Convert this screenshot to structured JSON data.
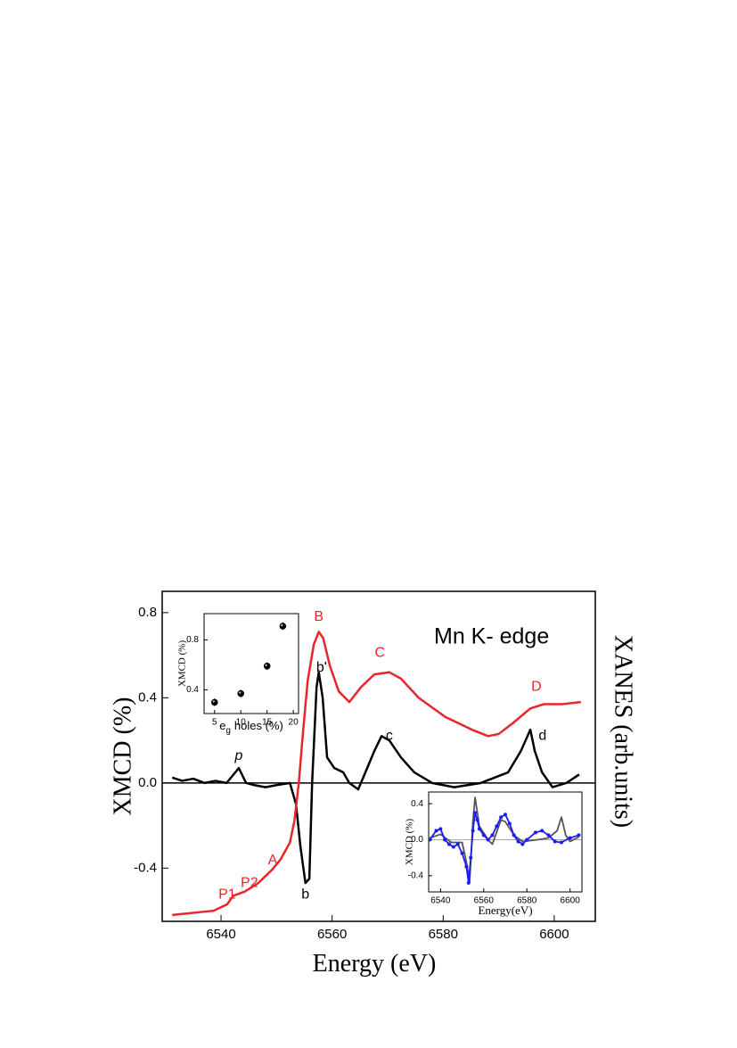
{
  "chart_data": [
    {
      "type": "line",
      "title": "Mn K- edge",
      "xlabel": "Energy (eV)",
      "ylabel": "XMCD (%)",
      "y2label": "XANES (arb.units)",
      "xlim": [
        6529.4,
        6607.4
      ],
      "ylim": [
        -0.65,
        0.9
      ],
      "y2lim": [
        -0.65,
        0.9
      ],
      "xticks": [
        6540,
        6560,
        6580,
        6600
      ],
      "yticks": [
        0.8,
        0.4,
        {
          "value": 0,
          "label": "0.0"
        },
        -0.4
      ],
      "zero_line": true,
      "series": [
        {
          "color": "#000000",
          "x": [
            6531.2,
            6533,
            6535,
            6537,
            6539,
            6541,
            6543.2,
            6544.5,
            6546,
            6548,
            6550,
            6552.4,
            6553.5,
            6554.3,
            6555.2,
            6555.9,
            6556.4,
            6557.2,
            6557.6,
            6558.3,
            6559.1,
            6560.4,
            6562,
            6563.1,
            6564.7,
            6566,
            6567.6,
            6568.9,
            6570.3,
            6572.4,
            6574.8,
            6578,
            6582,
            6586.8,
            6591.7,
            6594,
            6595.7,
            6596.5,
            6597.8,
            6599.7,
            6602.2,
            6604.5
          ],
          "values": [
            0.025,
            0.01,
            0.02,
            0.0,
            0.01,
            0.0,
            0.07,
            0.0,
            -0.01,
            -0.02,
            -0.01,
            0.0,
            -0.1,
            -0.3,
            -0.47,
            -0.45,
            0.0,
            0.45,
            0.52,
            0.4,
            0.12,
            0.07,
            0.05,
            0.0,
            -0.03,
            0.05,
            0.15,
            0.22,
            0.2,
            0.12,
            0.05,
            0.0,
            -0.02,
            0.0,
            0.05,
            0.15,
            0.25,
            0.15,
            0.05,
            -0.02,
            0.0,
            0.04
          ]
        },
        {
          "color": "#e8262a",
          "axis": "y2",
          "x": [
            6531.2,
            6538.7,
            6541.1,
            6542.2,
            6544.3,
            6546.7,
            6549.1,
            6550.7,
            6552.4,
            6553.2,
            6554,
            6554.8,
            6555.6,
            6556.7,
            6557.6,
            6558.4,
            6559.6,
            6561.2,
            6563.1,
            6565.2,
            6567.6,
            6570.3,
            6572.4,
            6575.6,
            6580.4,
            6585.2,
            6588.1,
            6590,
            6592.5,
            6595.7,
            6598.1,
            6601.3,
            6604.8
          ],
          "values": [
            -0.62,
            -0.6,
            -0.57,
            -0.53,
            -0.51,
            -0.47,
            -0.41,
            -0.36,
            -0.28,
            -0.18,
            0.0,
            0.25,
            0.48,
            0.65,
            0.71,
            0.68,
            0.55,
            0.43,
            0.38,
            0.45,
            0.51,
            0.52,
            0.49,
            0.4,
            0.31,
            0.25,
            0.22,
            0.23,
            0.28,
            0.35,
            0.37,
            0.37,
            0.38
          ]
        }
      ],
      "annotations": [
        {
          "text": "p",
          "x": 6543.2,
          "y": 0.126,
          "color": "#000000",
          "italic": true
        },
        {
          "text": "b'",
          "x": 6558.1,
          "y": 0.54,
          "color": "#000000"
        },
        {
          "text": "c",
          "x": 6570.3,
          "y": 0.22,
          "color": "#000000"
        },
        {
          "text": "d",
          "x": 6597.9,
          "y": 0.22,
          "color": "#000000"
        },
        {
          "text": "b",
          "x": 6555.2,
          "y": -0.525,
          "color": "#000000"
        },
        {
          "text": "B",
          "x": 6557.6,
          "y": 0.78,
          "color": "#e8262a"
        },
        {
          "text": "C",
          "x": 6568.6,
          "y": 0.61,
          "color": "#e8262a"
        },
        {
          "text": "D",
          "x": 6596.8,
          "y": 0.45,
          "color": "#e8262a"
        },
        {
          "text": "A",
          "x": 6549.3,
          "y": -0.365,
          "color": "#e8262a"
        },
        {
          "text": "P2",
          "x": 6545.1,
          "y": -0.47,
          "color": "#e8262a"
        },
        {
          "text": "P1",
          "x": 6541.1,
          "y": -0.525,
          "color": "#e8262a"
        }
      ]
    },
    {
      "type": "scatter",
      "ylabel": "XMCD (%)",
      "xlabel": "e",
      "xlabel_sub": "g",
      "xlabel_rest": "holes (%)",
      "xlim": [
        3,
        21
      ],
      "ylim": [
        0.21,
        1.01
      ],
      "xticks": [
        5,
        10,
        15,
        20
      ],
      "yticks": [
        0.4,
        0.8
      ],
      "x": [
        5,
        10,
        15,
        18
      ],
      "values": [
        0.3,
        0.37,
        0.59,
        0.91
      ],
      "errors": [
        0.03,
        0.03,
        0.03,
        0.03
      ],
      "color": "#000000"
    },
    {
      "type": "line",
      "ylabel": "XMCD (%)",
      "xlabel": "Energy(eV)",
      "xlim": [
        6534.5,
        6605.5
      ],
      "ylim": [
        -0.58,
        0.53
      ],
      "xticks": [
        6540,
        6560,
        6580,
        6600
      ],
      "yticks": [
        0.4,
        {
          "value": 0,
          "label": "0.0"
        },
        -0.4
      ],
      "zero_line": true,
      "series": [
        {
          "color": "#555555",
          "x": [
            6535,
            6540,
            6545,
            6550,
            6552,
            6553.5,
            6555,
            6556,
            6558,
            6562,
            6564,
            6568,
            6570,
            6574,
            6578,
            6585,
            6590,
            6594,
            6596,
            6598,
            6600,
            6604
          ],
          "values": [
            0.02,
            0.06,
            -0.03,
            -0.03,
            -0.25,
            -0.47,
            0.2,
            0.47,
            0.15,
            0.0,
            -0.05,
            0.22,
            0.2,
            0.05,
            -0.02,
            0.0,
            0.02,
            0.1,
            0.25,
            0.05,
            -0.02,
            0.03
          ]
        },
        {
          "color": "#1a1aff",
          "markers": true,
          "x": [
            6535,
            6538,
            6540,
            6542,
            6544,
            6546,
            6548,
            6550,
            6552,
            6553,
            6554,
            6555,
            6556,
            6557,
            6558,
            6560,
            6562,
            6564,
            6566,
            6568,
            6570,
            6572,
            6574,
            6576,
            6578,
            6580,
            6584,
            6587,
            6590,
            6593,
            6596,
            6600,
            6604
          ],
          "values": [
            0.0,
            0.1,
            0.12,
            0.0,
            -0.05,
            -0.08,
            -0.05,
            -0.15,
            -0.3,
            -0.48,
            -0.2,
            0.1,
            0.3,
            0.22,
            0.12,
            0.05,
            0.0,
            0.05,
            0.15,
            0.25,
            0.28,
            0.18,
            0.05,
            -0.02,
            -0.05,
            0.0,
            0.08,
            0.1,
            0.05,
            -0.02,
            -0.03,
            0.02,
            0.05
          ]
        }
      ]
    }
  ]
}
